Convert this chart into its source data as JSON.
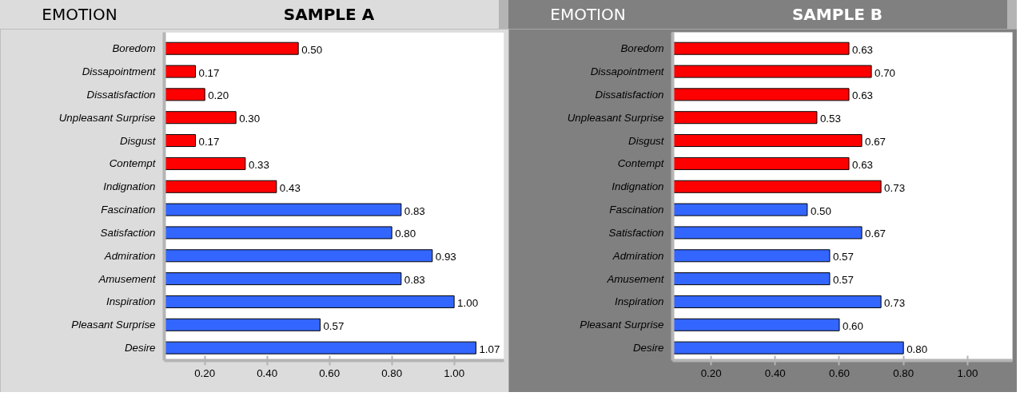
{
  "chart_data": [
    {
      "type": "bar",
      "orientation": "horizontal",
      "title": "SAMPLE A",
      "ylabel": "EMOTION",
      "categories": [
        "Boredom",
        "Dissapointment",
        "Dissatisfaction",
        "Unpleasant Surprise",
        "Disgust",
        "Contempt",
        "Indignation",
        "Fascination",
        "Satisfaction",
        "Admiration",
        "Amusement",
        "Inspiration",
        "Pleasant Surprise",
        "Desire"
      ],
      "values": [
        0.5,
        0.17,
        0.2,
        0.3,
        0.17,
        0.33,
        0.43,
        0.83,
        0.8,
        0.93,
        0.83,
        1.0,
        0.57,
        1.07
      ],
      "value_labels": [
        "0.50",
        "0.17",
        "0.20",
        "0.30",
        "0.17",
        "0.33",
        "0.43",
        "0.83",
        "0.80",
        "0.93",
        "0.83",
        "1.00",
        "0.57",
        "1.07"
      ],
      "colors": [
        "#ff0000",
        "#ff0000",
        "#ff0000",
        "#ff0000",
        "#ff0000",
        "#ff0000",
        "#ff0000",
        "#3366ff",
        "#3366ff",
        "#3366ff",
        "#3366ff",
        "#3366ff",
        "#3366ff",
        "#3366ff"
      ],
      "xlim": [
        0.07,
        1.16
      ],
      "xticks": [
        {
          "value": 0.2,
          "label": "0.20"
        },
        {
          "value": 0.4,
          "label": "0.40"
        },
        {
          "value": 0.6,
          "label": "0.60"
        },
        {
          "value": 0.8,
          "label": "0.80"
        },
        {
          "value": 1.0,
          "label": "1.00"
        }
      ],
      "grid": false
    },
    {
      "type": "bar",
      "orientation": "horizontal",
      "title": "SAMPLE B",
      "ylabel": "EMOTION",
      "categories": [
        "Boredom",
        "Dissapointment",
        "Dissatisfaction",
        "Unpleasant Surprise",
        "Disgust",
        "Contempt",
        "Indignation",
        "Fascination",
        "Satisfaction",
        "Admiration",
        "Amusement",
        "Inspiration",
        "Pleasant Surprise",
        "Desire"
      ],
      "values": [
        0.63,
        0.7,
        0.63,
        0.53,
        0.67,
        0.63,
        0.73,
        0.5,
        0.67,
        0.57,
        0.57,
        0.73,
        0.6,
        0.8
      ],
      "value_labels": [
        "0.63",
        "0.70",
        "0.63",
        "0.53",
        "0.67",
        "0.63",
        "0.73",
        "0.50",
        "0.67",
        "0.57",
        "0.57",
        "0.73",
        "0.60",
        "0.80"
      ],
      "colors": [
        "#ff0000",
        "#ff0000",
        "#ff0000",
        "#ff0000",
        "#ff0000",
        "#ff0000",
        "#ff0000",
        "#3366ff",
        "#3366ff",
        "#3366ff",
        "#3366ff",
        "#3366ff",
        "#3366ff",
        "#3366ff"
      ],
      "xlim": [
        0.08,
        1.14
      ],
      "xticks": [
        {
          "value": 0.2,
          "label": "0.20"
        },
        {
          "value": 0.4,
          "label": "0.40"
        },
        {
          "value": 0.6,
          "label": "0.60"
        },
        {
          "value": 0.8,
          "label": "0.80"
        },
        {
          "value": 1.0,
          "label": "1.00"
        }
      ],
      "grid": false
    }
  ]
}
